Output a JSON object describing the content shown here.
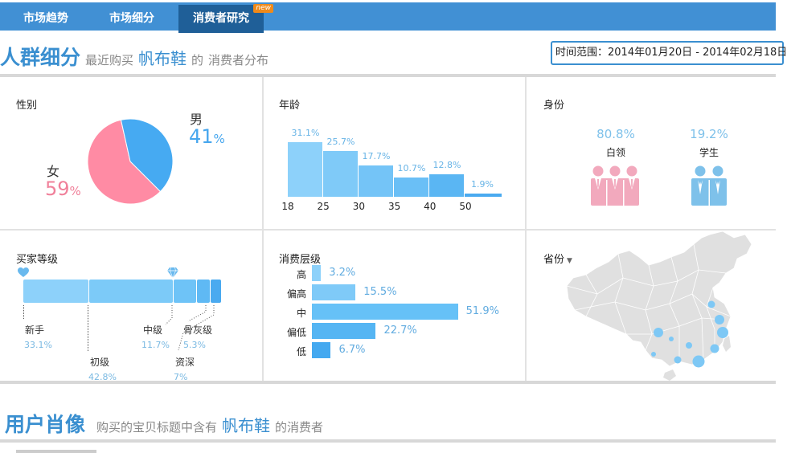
{
  "nav": {
    "tabs": [
      {
        "label": "市场趋势"
      },
      {
        "label": "市场细分"
      },
      {
        "label": "消费者研究",
        "badge": "new",
        "active": true
      }
    ]
  },
  "segment": {
    "title": "人群细分",
    "subtitle_prefix": "最近购买",
    "keyword": "帆布鞋",
    "subtitle_suffix": "的",
    "subtitle_tail": "消费者分布",
    "date_range": "时间范围：2014年01月20日 - 2014年02月18日"
  },
  "gender": {
    "title": "性别",
    "male_label": "男",
    "male_pct": "41",
    "male_unit": "%",
    "female_label": "女",
    "female_pct": "59",
    "female_unit": "%",
    "male_color": "#46aaf2",
    "female_color": "#ff8ba4"
  },
  "age": {
    "title": "年龄",
    "bars": [
      {
        "label": "31.1%",
        "value": 31.1
      },
      {
        "label": "25.7%",
        "value": 25.7
      },
      {
        "label": "17.7%",
        "value": 17.7
      },
      {
        "label": "10.7%",
        "value": 10.7
      },
      {
        "label": "12.8%",
        "value": 12.8
      },
      {
        "label": "1.9%",
        "value": 1.9
      }
    ],
    "ticks": [
      "18",
      "25",
      "30",
      "35",
      "40",
      "50"
    ]
  },
  "identity": {
    "title": "身份",
    "items": [
      {
        "pct": "80.8%",
        "name": "白领",
        "icon": "office-workers-icon",
        "color": "#f2a9bd"
      },
      {
        "pct": "19.2%",
        "name": "学生",
        "icon": "students-icon",
        "color": "#7ec1ea"
      }
    ]
  },
  "buyer_level": {
    "title": "买家等级",
    "levels": [
      {
        "name": "新手",
        "pct": "33.1%",
        "value": 33.1
      },
      {
        "name": "初级",
        "pct": "42.8%",
        "value": 42.8
      },
      {
        "name": "中级",
        "pct": "11.7%",
        "value": 11.7
      },
      {
        "name": "骨灰级",
        "pct": "5.3%",
        "value": 5.3
      },
      {
        "name": "资深",
        "pct": "7%",
        "value": 7
      }
    ],
    "icons": [
      "heart-icon",
      "diamond-icon"
    ]
  },
  "consumption": {
    "title": "消费层级",
    "levels": [
      {
        "name": "高",
        "pct": "3.2%",
        "value": 3.2
      },
      {
        "name": "偏高",
        "pct": "15.5%",
        "value": 15.5
      },
      {
        "name": "中",
        "pct": "51.9%",
        "value": 51.9
      },
      {
        "name": "偏低",
        "pct": "22.7%",
        "value": 22.7
      },
      {
        "name": "低",
        "pct": "6.7%",
        "value": 6.7
      }
    ]
  },
  "province": {
    "label": "省份",
    "icon": "caret-down-icon"
  },
  "portrait": {
    "title": "用户肖像",
    "subtitle_prefix": "购买的宝贝标题中含有",
    "keyword": "帆布鞋",
    "subtitle_suffix": "的消费者"
  }
}
